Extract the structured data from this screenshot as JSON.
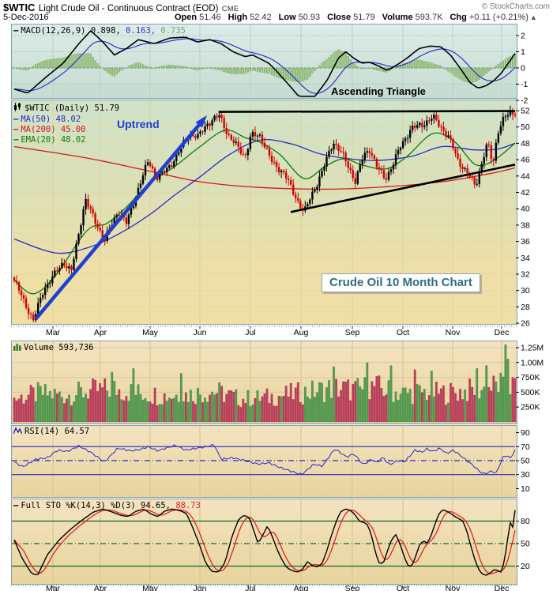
{
  "header": {
    "symbol": "$WTIC",
    "name": "Light Crude Oil - Continuous Contract (EOD)",
    "exchange": "CME",
    "copyright": "© StockCharts.com",
    "date": "5-Dec-2016",
    "quote_fields": [
      {
        "label": "Open",
        "value": "51.46"
      },
      {
        "label": "High",
        "value": "52.42"
      },
      {
        "label": "Low",
        "value": "50.93"
      },
      {
        "label": "Close",
        "value": "51.79"
      },
      {
        "label": "Volume",
        "value": "593.7K"
      },
      {
        "label": "Chg",
        "value": "+0.11 (+0.21%)"
      }
    ],
    "chg_arrow": "▲"
  },
  "annotations": {
    "uptrend": "Uptrend",
    "ascending_triangle": "Ascending Triangle",
    "chart_label": "Crude Oil 10 Month Chart"
  },
  "panels": {
    "macd": {
      "label": "MACD(12,26,9)",
      "values": [
        {
          "text": "0.898,",
          "color": "#000000"
        },
        {
          "text": "0.163,",
          "color": "#3232cc"
        },
        {
          "text": "0.735",
          "color": "#6fae6f"
        }
      ]
    },
    "price": {
      "label": "$WTIC (Daily) 51.79",
      "ma50": "MA(50) 48.02",
      "ma200": "MA(200) 45.00",
      "ema20": "EMA(20) 48.02"
    },
    "volume": {
      "label": "Volume 593,736"
    },
    "rsi": {
      "label": "RSI(14) 64.57"
    },
    "sto": {
      "label": "Full STO %K(14,3) %D(3) 94.65,",
      "d_value": "88.73"
    }
  },
  "x_axis": {
    "months": [
      "Mar",
      "Apr",
      "May",
      "Jun",
      "Jul",
      "Aug",
      "Sep",
      "Oct",
      "Nov",
      "Dec"
    ]
  },
  "colors": {
    "up_candle": "#000000",
    "down_candle": "#d40000",
    "volume_up": "#4f9d4f",
    "volume_down": "#c13b5c",
    "ma50": "#2929c8",
    "ma200": "#d01818",
    "ema20": "#0a7a0a",
    "macd_line": "#000000",
    "macd_signal": "#3232cc",
    "macd_hist_fill": "#9fc87f",
    "macd_hist_stroke": "#6a9a52",
    "rsi_line": "#2828c8",
    "rsi_levels": "#2828c8",
    "sto_k": "#000000",
    "sto_d": "#e82020",
    "sto_levels": "#0a6a2a",
    "annotation_blue": "#1f3fd4",
    "trendline_black": "#000000",
    "label_teal": "#2e6e7e"
  },
  "chart_data": {
    "type": "candlestick",
    "title": "Light Crude Oil - Continuous Contract (EOD), 10 month daily chart, Feb-Dec 2016",
    "price_axis": [
      52,
      50,
      48,
      46,
      44,
      42,
      40,
      38,
      36,
      34,
      32,
      30,
      28,
      26
    ],
    "macd_axis": [
      2,
      1,
      0,
      -1,
      -2
    ],
    "volume_axis": [
      {
        "label": "1.25M",
        "v": 1250
      },
      {
        "label": "1.00M",
        "v": 1000
      },
      {
        "label": "750K",
        "v": 750
      },
      {
        "label": "500K",
        "v": 500
      },
      {
        "label": "250K",
        "v": 250
      }
    ],
    "rsi_axis": [
      90,
      70,
      50,
      30,
      10
    ],
    "sto_axis": [
      80,
      50,
      20
    ],
    "rsi_levels": [
      70,
      50,
      30
    ],
    "sto_levels": [
      80,
      50,
      20
    ],
    "close_keypoints": [
      [
        0,
        31.2
      ],
      [
        0.019,
        28.8
      ],
      [
        0.038,
        26.3
      ],
      [
        0.058,
        30.0
      ],
      [
        0.098,
        33.5
      ],
      [
        0.114,
        32.3
      ],
      [
        0.142,
        41.2
      ],
      [
        0.161,
        38.5
      ],
      [
        0.181,
        36.2
      ],
      [
        0.208,
        39.8
      ],
      [
        0.224,
        38.2
      ],
      [
        0.248,
        42.5
      ],
      [
        0.268,
        45.9
      ],
      [
        0.284,
        43.8
      ],
      [
        0.303,
        44.7
      ],
      [
        0.322,
        46.2
      ],
      [
        0.35,
        49.3
      ],
      [
        0.366,
        48.7
      ],
      [
        0.385,
        50.4
      ],
      [
        0.41,
        51.4
      ],
      [
        0.429,
        48.8
      ],
      [
        0.461,
        46.4
      ],
      [
        0.473,
        49.0
      ],
      [
        0.492,
        48.9
      ],
      [
        0.516,
        45.5
      ],
      [
        0.539,
        44.4
      ],
      [
        0.558,
        41.8
      ],
      [
        0.579,
        39.6
      ],
      [
        0.595,
        41.8
      ],
      [
        0.615,
        44.6
      ],
      [
        0.637,
        48.2
      ],
      [
        0.653,
        46.9
      ],
      [
        0.681,
        43.4
      ],
      [
        0.697,
        46.4
      ],
      [
        0.71,
        47.3
      ],
      [
        0.726,
        44.9
      ],
      [
        0.741,
        43.6
      ],
      [
        0.757,
        45.6
      ],
      [
        0.773,
        47.8
      ],
      [
        0.792,
        49.8
      ],
      [
        0.815,
        50.3
      ],
      [
        0.836,
        51.2
      ],
      [
        0.852,
        50.0
      ],
      [
        0.868,
        48.7
      ],
      [
        0.886,
        45.9
      ],
      [
        0.905,
        44.3
      ],
      [
        0.921,
        42.8
      ],
      [
        0.934,
        45.7
      ],
      [
        0.945,
        48.0
      ],
      [
        0.956,
        45.4
      ],
      [
        0.965,
        49.4
      ],
      [
        0.978,
        51.1
      ],
      [
        0.989,
        51.6
      ],
      [
        1,
        51.79
      ]
    ],
    "ma50_keypoints": [
      [
        0,
        36.3
      ],
      [
        0.082,
        34.6
      ],
      [
        0.145,
        35.2
      ],
      [
        0.208,
        36.9
      ],
      [
        0.271,
        39.3
      ],
      [
        0.319,
        41.6
      ],
      [
        0.371,
        43.9
      ],
      [
        0.429,
        46.6
      ],
      [
        0.492,
        48.4
      ],
      [
        0.555,
        47.9
      ],
      [
        0.618,
        46.6
      ],
      [
        0.713,
        45.9
      ],
      [
        0.792,
        46.4
      ],
      [
        0.855,
        47.6
      ],
      [
        0.918,
        47.2
      ],
      [
        0.965,
        47.3
      ],
      [
        1,
        48.02
      ]
    ],
    "ma200_keypoints": [
      [
        0,
        47.6
      ],
      [
        0.145,
        46.2
      ],
      [
        0.271,
        44.6
      ],
      [
        0.371,
        43.3
      ],
      [
        0.492,
        42.6
      ],
      [
        0.634,
        42.4
      ],
      [
        0.744,
        42.7
      ],
      [
        0.855,
        43.3
      ],
      [
        0.95,
        44.3
      ],
      [
        1,
        45.0
      ]
    ],
    "ema20_keypoints": [
      [
        0,
        31.3
      ],
      [
        0.038,
        29.6
      ],
      [
        0.082,
        31.8
      ],
      [
        0.145,
        37.3
      ],
      [
        0.185,
        38.2
      ],
      [
        0.224,
        40.2
      ],
      [
        0.271,
        43.2
      ],
      [
        0.319,
        45.1
      ],
      [
        0.371,
        47.6
      ],
      [
        0.421,
        49.6
      ],
      [
        0.461,
        48.7
      ],
      [
        0.492,
        48.1
      ],
      [
        0.531,
        46.6
      ],
      [
        0.579,
        43.7
      ],
      [
        0.621,
        45.2
      ],
      [
        0.658,
        46.1
      ],
      [
        0.697,
        45.3
      ],
      [
        0.744,
        44.9
      ],
      [
        0.784,
        46.4
      ],
      [
        0.836,
        49.2
      ],
      [
        0.879,
        48.2
      ],
      [
        0.921,
        45.4
      ],
      [
        0.957,
        45.9
      ],
      [
        1,
        48.02
      ]
    ],
    "macd_keypoints": [
      [
        0,
        -1.3
      ],
      [
        0.027,
        -1.55
      ],
      [
        0.066,
        -0.5
      ],
      [
        0.098,
        0.3
      ],
      [
        0.129,
        1.5
      ],
      [
        0.153,
        2.3
      ],
      [
        0.177,
        1.6
      ],
      [
        0.2,
        0.8
      ],
      [
        0.224,
        1.2
      ],
      [
        0.248,
        1.75
      ],
      [
        0.279,
        1.5
      ],
      [
        0.311,
        1.85
      ],
      [
        0.342,
        1.9
      ],
      [
        0.366,
        1.6
      ],
      [
        0.39,
        1.75
      ],
      [
        0.413,
        1.5
      ],
      [
        0.437,
        1.0
      ],
      [
        0.461,
        0.7
      ],
      [
        0.476,
        0.8
      ],
      [
        0.492,
        0.55
      ],
      [
        0.508,
        0.3
      ],
      [
        0.524,
        -0.2
      ],
      [
        0.547,
        -1.0
      ],
      [
        0.571,
        -1.85
      ],
      [
        0.587,
        -2.1
      ],
      [
        0.602,
        -1.7
      ],
      [
        0.626,
        -0.7
      ],
      [
        0.647,
        0.6
      ],
      [
        0.662,
        1.0
      ],
      [
        0.678,
        0.6
      ],
      [
        0.694,
        0.3
      ],
      [
        0.71,
        0.35
      ],
      [
        0.729,
        0.1
      ],
      [
        0.744,
        -0.15
      ],
      [
        0.76,
        0.1
      ],
      [
        0.784,
        0.6
      ],
      [
        0.808,
        1.2
      ],
      [
        0.831,
        1.35
      ],
      [
        0.852,
        1.3
      ],
      [
        0.871,
        0.8
      ],
      [
        0.89,
        0.0
      ],
      [
        0.91,
        -0.9
      ],
      [
        0.926,
        -1.25
      ],
      [
        0.942,
        -1.1
      ],
      [
        0.957,
        -0.8
      ],
      [
        0.973,
        -0.3
      ],
      [
        0.989,
        0.4
      ],
      [
        1,
        0.898
      ]
    ],
    "rsi_keypoints": [
      [
        0,
        48
      ],
      [
        0.017,
        41
      ],
      [
        0.043,
        52
      ],
      [
        0.066,
        54
      ],
      [
        0.087,
        65
      ],
      [
        0.106,
        63
      ],
      [
        0.129,
        71
      ],
      [
        0.153,
        62
      ],
      [
        0.18,
        48
      ],
      [
        0.207,
        68
      ],
      [
        0.232,
        64
      ],
      [
        0.252,
        66
      ],
      [
        0.267,
        70
      ],
      [
        0.287,
        64
      ],
      [
        0.303,
        68
      ],
      [
        0.322,
        72
      ],
      [
        0.342,
        65
      ],
      [
        0.366,
        68
      ],
      [
        0.385,
        70
      ],
      [
        0.399,
        73
      ],
      [
        0.413,
        52
      ],
      [
        0.437,
        54
      ],
      [
        0.461,
        50
      ],
      [
        0.487,
        45
      ],
      [
        0.508,
        47
      ],
      [
        0.531,
        40
      ],
      [
        0.565,
        32
      ],
      [
        0.574,
        30
      ],
      [
        0.598,
        45
      ],
      [
        0.615,
        42
      ],
      [
        0.64,
        67
      ],
      [
        0.664,
        55
      ],
      [
        0.678,
        60
      ],
      [
        0.697,
        44
      ],
      [
        0.713,
        52
      ],
      [
        0.724,
        47
      ],
      [
        0.736,
        55
      ],
      [
        0.749,
        44
      ],
      [
        0.766,
        50
      ],
      [
        0.779,
        48
      ],
      [
        0.8,
        65
      ],
      [
        0.815,
        62
      ],
      [
        0.823,
        67
      ],
      [
        0.836,
        63
      ],
      [
        0.85,
        68
      ],
      [
        0.863,
        60
      ],
      [
        0.877,
        65
      ],
      [
        0.904,
        50
      ],
      [
        0.918,
        42
      ],
      [
        0.932,
        33
      ],
      [
        0.94,
        31
      ],
      [
        0.953,
        35
      ],
      [
        0.962,
        32
      ],
      [
        0.976,
        55
      ],
      [
        0.984,
        58
      ],
      [
        0.989,
        52
      ],
      [
        1,
        64.57
      ]
    ],
    "sto_k_keypoints": [
      [
        0,
        55
      ],
      [
        0.016,
        30
      ],
      [
        0.035,
        10
      ],
      [
        0.047,
        8
      ],
      [
        0.066,
        35
      ],
      [
        0.09,
        55
      ],
      [
        0.114,
        70
      ],
      [
        0.137,
        82
      ],
      [
        0.158,
        92
      ],
      [
        0.177,
        96
      ],
      [
        0.192,
        93
      ],
      [
        0.211,
        88
      ],
      [
        0.227,
        86
      ],
      [
        0.243,
        93
      ],
      [
        0.259,
        96
      ],
      [
        0.274,
        89
      ],
      [
        0.287,
        86
      ],
      [
        0.3,
        93
      ],
      [
        0.315,
        96
      ],
      [
        0.331,
        94
      ],
      [
        0.344,
        90
      ],
      [
        0.356,
        72
      ],
      [
        0.369,
        50
      ],
      [
        0.382,
        25
      ],
      [
        0.394,
        13
      ],
      [
        0.408,
        12
      ],
      [
        0.421,
        25
      ],
      [
        0.435,
        60
      ],
      [
        0.448,
        82
      ],
      [
        0.459,
        88
      ],
      [
        0.47,
        84
      ],
      [
        0.479,
        66
      ],
      [
        0.487,
        50
      ],
      [
        0.497,
        62
      ],
      [
        0.506,
        74
      ],
      [
        0.516,
        58
      ],
      [
        0.525,
        42
      ],
      [
        0.535,
        28
      ],
      [
        0.544,
        18
      ],
      [
        0.555,
        14
      ],
      [
        0.566,
        12
      ],
      [
        0.576,
        16
      ],
      [
        0.585,
        26
      ],
      [
        0.595,
        21
      ],
      [
        0.604,
        19
      ],
      [
        0.614,
        23
      ],
      [
        0.623,
        38
      ],
      [
        0.632,
        58
      ],
      [
        0.642,
        78
      ],
      [
        0.651,
        92
      ],
      [
        0.661,
        96
      ],
      [
        0.67,
        95
      ],
      [
        0.68,
        89
      ],
      [
        0.689,
        80
      ],
      [
        0.699,
        78
      ],
      [
        0.707,
        74
      ],
      [
        0.715,
        56
      ],
      [
        0.722,
        36
      ],
      [
        0.73,
        22
      ],
      [
        0.738,
        26
      ],
      [
        0.746,
        42
      ],
      [
        0.754,
        56
      ],
      [
        0.762,
        62
      ],
      [
        0.77,
        50
      ],
      [
        0.778,
        34
      ],
      [
        0.785,
        22
      ],
      [
        0.793,
        19
      ],
      [
        0.801,
        32
      ],
      [
        0.809,
        48
      ],
      [
        0.817,
        54
      ],
      [
        0.825,
        50
      ],
      [
        0.833,
        62
      ],
      [
        0.841,
        78
      ],
      [
        0.849,
        91
      ],
      [
        0.856,
        95
      ],
      [
        0.864,
        93
      ],
      [
        0.872,
        90
      ],
      [
        0.88,
        86
      ],
      [
        0.888,
        83
      ],
      [
        0.896,
        80
      ],
      [
        0.904,
        66
      ],
      [
        0.912,
        46
      ],
      [
        0.92,
        28
      ],
      [
        0.927,
        16
      ],
      [
        0.935,
        9
      ],
      [
        0.943,
        8
      ],
      [
        0.951,
        11
      ],
      [
        0.959,
        16
      ],
      [
        0.965,
        14
      ],
      [
        0.972,
        12
      ],
      [
        0.978,
        24
      ],
      [
        0.984,
        50
      ],
      [
        0.989,
        74
      ],
      [
        0.992,
        82
      ],
      [
        0.995,
        73
      ],
      [
        0.997,
        64
      ],
      [
        1,
        94.65
      ]
    ],
    "volume_envelope_k": [
      [
        0,
        420
      ],
      [
        0.05,
        520
      ],
      [
        0.1,
        480
      ],
      [
        0.15,
        560
      ],
      [
        0.2,
        600
      ],
      [
        0.25,
        520
      ],
      [
        0.3,
        480
      ],
      [
        0.35,
        500
      ],
      [
        0.4,
        560
      ],
      [
        0.45,
        420
      ],
      [
        0.5,
        440
      ],
      [
        0.55,
        500
      ],
      [
        0.6,
        560
      ],
      [
        0.64,
        620
      ],
      [
        0.68,
        580
      ],
      [
        0.72,
        640
      ],
      [
        0.75,
        560
      ],
      [
        0.78,
        520
      ],
      [
        0.82,
        540
      ],
      [
        0.86,
        520
      ],
      [
        0.9,
        560
      ],
      [
        0.94,
        600
      ],
      [
        0.97,
        680
      ],
      [
        1,
        640
      ]
    ],
    "volume_spikes_k": [
      [
        0.197,
        840
      ],
      [
        0.236,
        900
      ],
      [
        0.335,
        820
      ],
      [
        0.64,
        930
      ],
      [
        0.703,
        1000
      ],
      [
        0.752,
        950
      ],
      [
        0.8,
        880
      ],
      [
        0.835,
        860
      ],
      [
        0.925,
        900
      ],
      [
        0.943,
        950
      ],
      [
        0.976,
        760
      ],
      [
        0.981,
        1300
      ],
      [
        0.986,
        1060
      ]
    ],
    "trendlines": {
      "resistance": {
        "t0": 0.408,
        "p0": 51.85,
        "t1": 1.0,
        "p1": 51.95
      },
      "support": {
        "t0": 0.552,
        "p0": 39.6,
        "t1": 1.0,
        "p1": 45.4
      }
    }
  }
}
